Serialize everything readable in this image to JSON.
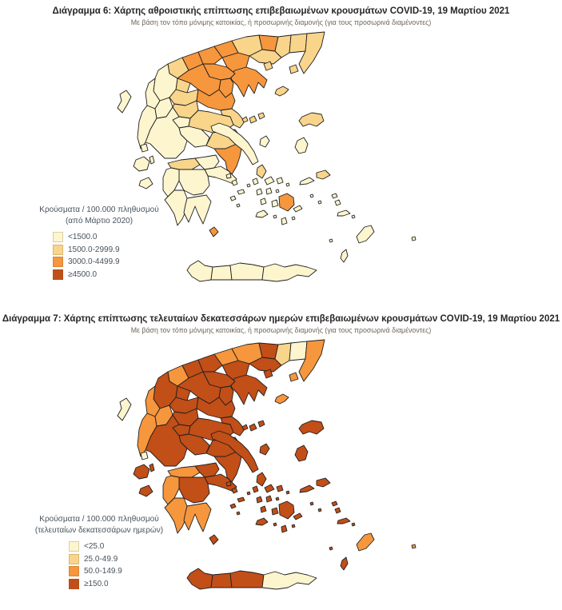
{
  "page": {
    "background": "#ffffff"
  },
  "palette": {
    "cat1": "#FCF5CE",
    "cat2": "#F8D58B",
    "cat3": "#F6963D",
    "cat4": "#C24E18",
    "stroke": "#1f1f1f"
  },
  "maps": [
    {
      "figure_label": "Διάγραμμα 6",
      "title": "Διάγραμμα 6: Χάρτης αθροιστικής επίπτωσης επιβεβαιωμένων κρουσμάτων COVID-19, 19 Μαρτίου 2021",
      "subtitle": "Με βάση τον τόπο μόνιμης κατοικίας, ή προσωρινής διαμονής (για τους προσωρινά διαμένοντες)",
      "legend": {
        "title_line1": "Κρούσματα / 100.000 πληθυσμού",
        "title_line2": "(από Μάρτιο 2020)",
        "items": [
          {
            "label": "<1500.0",
            "category": "cat1"
          },
          {
            "label": "1500.0-2999.9",
            "category": "cat2"
          },
          {
            "label": "3000.0-4499.9",
            "category": "cat3"
          },
          {
            "label": "≥4500.0",
            "category": "cat4"
          }
        ]
      },
      "regions": {
        "default": "cat1",
        "overrides": {
          "florina": "cat3",
          "pella": "cat3",
          "kilkis": "cat3",
          "drama": "cat3",
          "thessaloniki": "cat3",
          "chalkidiki": "cat3",
          "imathia": "cat3",
          "kozani": "cat3",
          "pieria": "cat3",
          "larissa": "cat3",
          "attica": "cat3",
          "naxos": "cat3",
          "kythira": "cat3",
          "kastoria": "cat2",
          "grevena": "cat2",
          "serres": "cat2",
          "kavala": "cat2",
          "xanthi": "cat2",
          "rodopi": "cat2",
          "evros": "cat2",
          "trikala": "cat2",
          "karditsa": "cat2",
          "magnesia": "cat2",
          "fthiotida": "cat2",
          "boeotia": "cat2",
          "achaia": "cat2",
          "thasos": "cat2",
          "samothrace": "cat2",
          "limnos": "cat2",
          "lesvos": "cat2",
          "samos": "cat2",
          "andros": "cat2",
          "skiathos": "cat2",
          "skopelos": "cat2",
          "alonissos": "cat2"
        }
      }
    },
    {
      "figure_label": "Διάγραμμα 7",
      "title": "Διάγραμμα 7: Χάρτης επίπτωσης τελευταίων δεκατεσσάρων ημερών επιβεβαιωμένων κρουσμάτων COVID-19, 19 Μαρτίου 2021",
      "subtitle": "Με βάση τον τόπο μόνιμης κατοικίας, ή προσωρινής διαμονής (για τους προσωρινά διαμένοντες)",
      "legend": {
        "title_line1": "Κρούσματα / 100.000 πληθυσμού",
        "title_line2": "(τελευταίων δεκατεσσάρων ημερών)",
        "items": [
          {
            "label": "<25.0",
            "category": "cat1"
          },
          {
            "label": "25.0-49.9",
            "category": "cat2"
          },
          {
            "label": "50.0-149.9",
            "category": "cat3"
          },
          {
            "label": "≥150.0",
            "category": "cat4"
          }
        ]
      },
      "regions": {
        "default": "cat4",
        "overrides": {
          "lefkada": "cat1",
          "lasithi": "cat1",
          "corfu": "cat1",
          "rodopi": "cat1",
          "xanthi": "cat2",
          "kastoria": "cat3",
          "kilkis": "cat3",
          "serres": "cat3",
          "evros": "cat3",
          "samothrace": "cat3",
          "limnos": "cat3",
          "thesprotia": "cat3",
          "preveza": "cat3",
          "arta": "cat3",
          "achaia": "cat3",
          "ilia": "cat3",
          "messinia": "cat3",
          "laconia": "cat3",
          "rhodes": "cat3",
          "kastellorizo": "cat3"
        }
      }
    }
  ]
}
